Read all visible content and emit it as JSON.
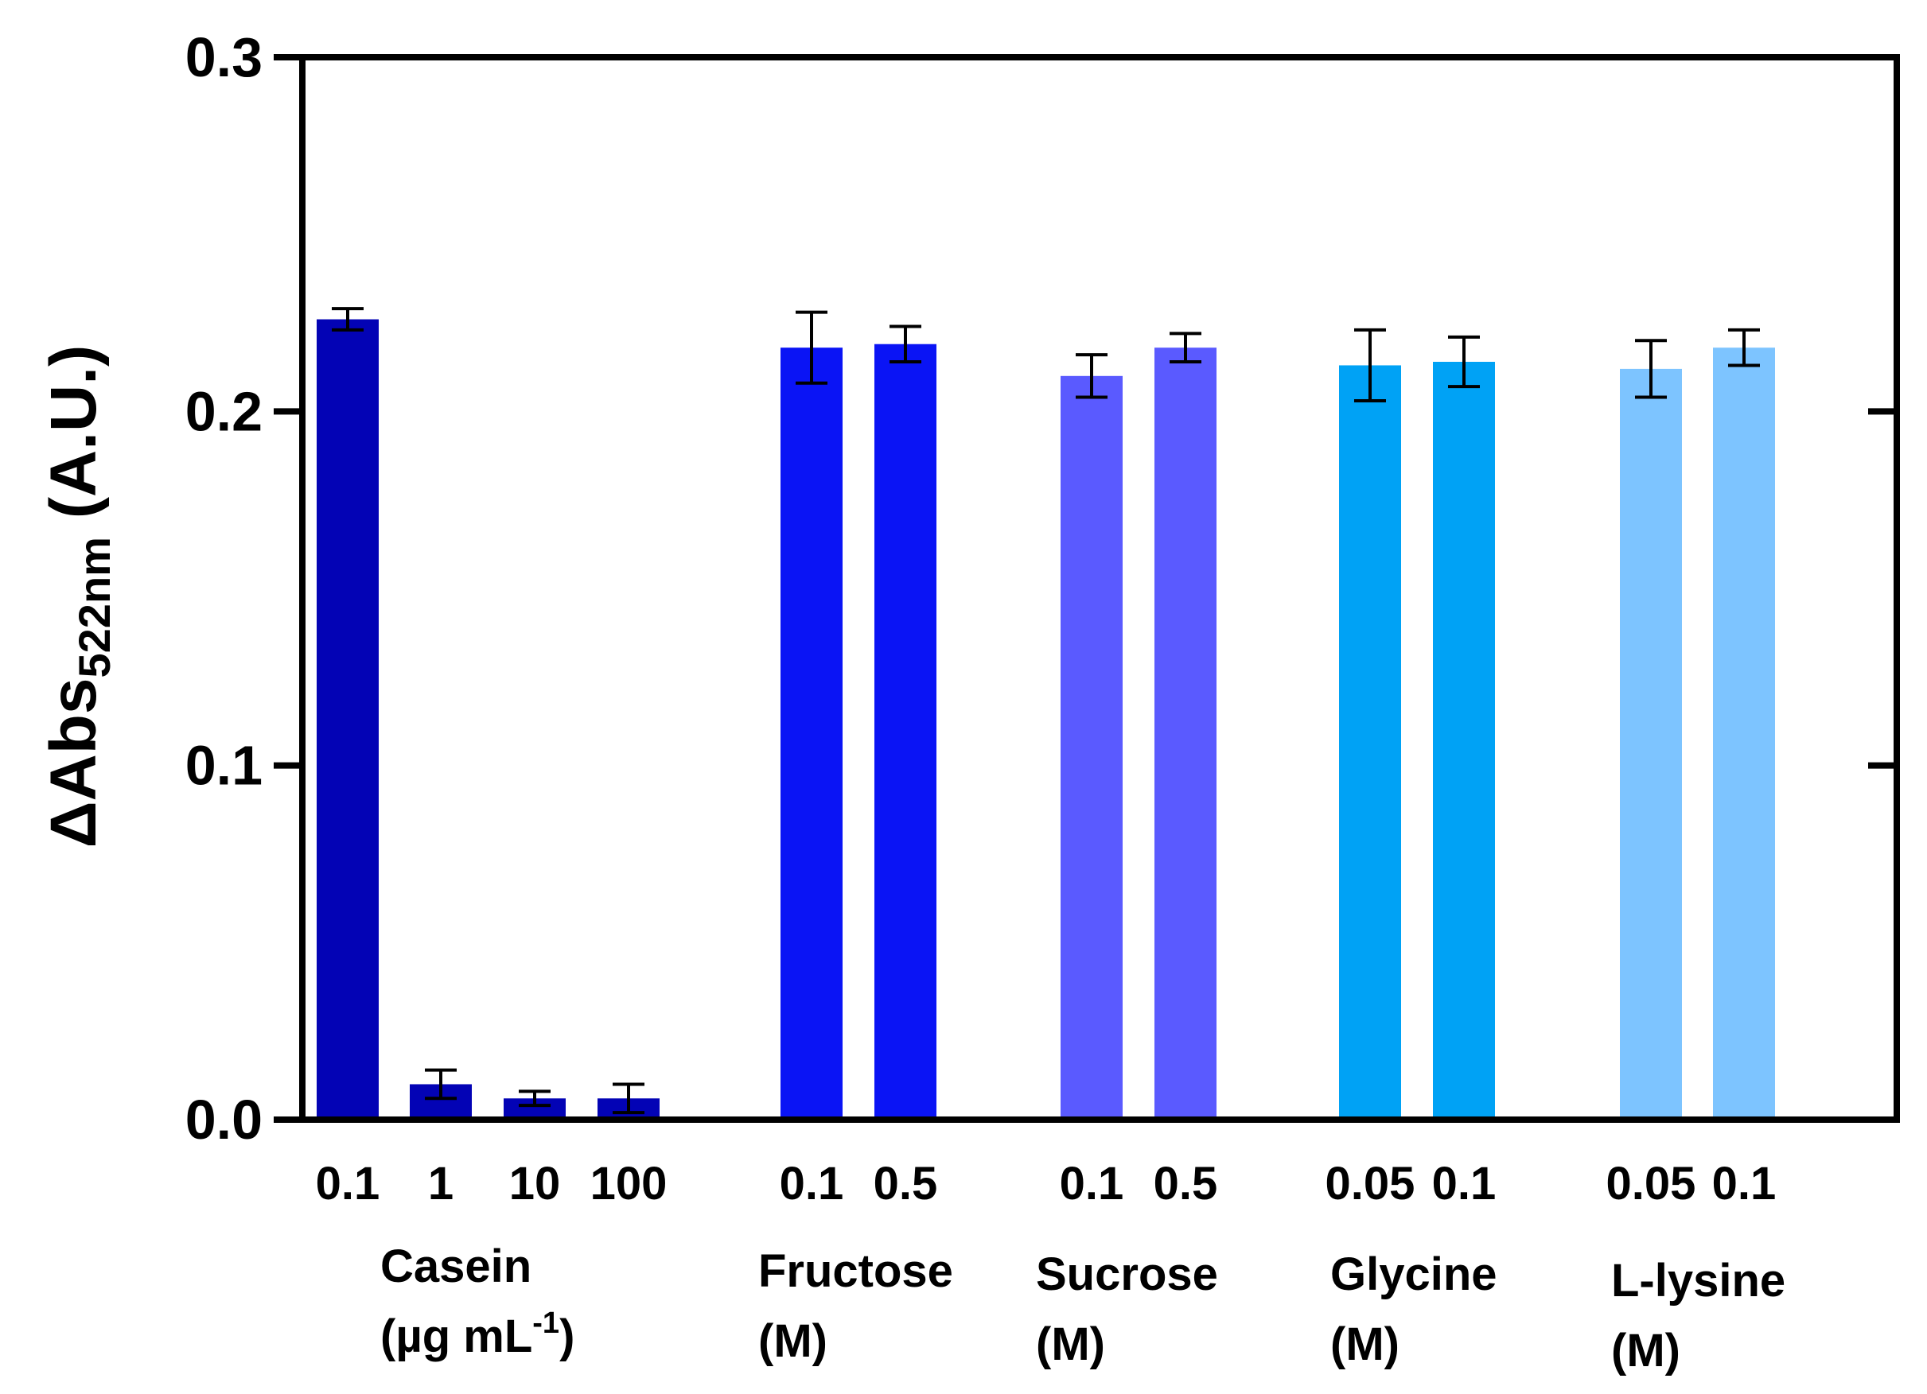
{
  "chart_data": {
    "type": "bar",
    "title": "",
    "xlabel": "",
    "ylabel": {
      "delta": "Δ",
      "main": "Abs",
      "subscript": "522nm",
      "unit": " (A.U.)"
    },
    "ylim": [
      0,
      0.3
    ],
    "yticks": [
      {
        "value": 0.0,
        "label": "0.0"
      },
      {
        "value": 0.1,
        "label": "0.1"
      },
      {
        "value": 0.2,
        "label": "0.2"
      },
      {
        "value": 0.3,
        "label": "0.3"
      }
    ],
    "grid": false,
    "legend": "none",
    "categories": [
      "0.1",
      "1",
      "10",
      "100",
      "0.1",
      "0.5",
      "0.1",
      "0.5",
      "0.05",
      "0.1",
      "0.05",
      "0.1"
    ],
    "groups": [
      {
        "name": "Casein",
        "unit_line": "(µg mL",
        "unit_sup": "-1",
        "unit_close": ")",
        "color": "#0303b5",
        "bars": [
          {
            "label": "0.1",
            "value": 0.226,
            "error": 0.003
          },
          {
            "label": "1",
            "value": 0.01,
            "error": 0.004
          },
          {
            "label": "10",
            "value": 0.006,
            "error": 0.002
          },
          {
            "label": "100",
            "value": 0.006,
            "error": 0.004
          }
        ]
      },
      {
        "name": "Fructose",
        "unit_line": "(M)",
        "color": "#0a14f5",
        "bars": [
          {
            "label": "0.1",
            "value": 0.218,
            "error": 0.01
          },
          {
            "label": "0.5",
            "value": 0.219,
            "error": 0.005
          }
        ]
      },
      {
        "name": "Sucrose",
        "unit_line": "(M)",
        "color": "#5a5aff",
        "bars": [
          {
            "label": "0.1",
            "value": 0.21,
            "error": 0.006
          },
          {
            "label": "0.5",
            "value": 0.218,
            "error": 0.004
          }
        ]
      },
      {
        "name": "Glycine",
        "unit_line": "(M)",
        "color": "#00a2f5",
        "bars": [
          {
            "label": "0.05",
            "value": 0.213,
            "error": 0.01
          },
          {
            "label": "0.1",
            "value": 0.214,
            "error": 0.007
          }
        ]
      },
      {
        "name": "L-lysine",
        "unit_line": "(M)",
        "color": "#7dc4ff",
        "bars": [
          {
            "label": "0.05",
            "value": 0.212,
            "error": 0.008
          },
          {
            "label": "0.1",
            "value": 0.218,
            "error": 0.005
          }
        ]
      }
    ]
  }
}
